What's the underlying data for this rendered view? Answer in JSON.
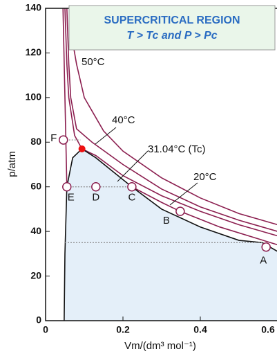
{
  "chart_data": {
    "type": "line",
    "title": "SUPERCRITICAL REGION",
    "subtitle": "T > Tc and P > Pc",
    "x_label": "Vm/(dm³ mol⁻¹)",
    "y_label": "p/atm",
    "xlim": [
      0,
      0.6
    ],
    "xticks": [
      0,
      0.2,
      0.4,
      0.6
    ],
    "ylim": [
      0,
      140
    ],
    "yticks": [
      0,
      20,
      40,
      60,
      80,
      100,
      120,
      140
    ],
    "series": [
      {
        "name": "50°C",
        "color": "#8b1e4f",
        "x": [
          0.062,
          0.07,
          0.08,
          0.1,
          0.15,
          0.2,
          0.3,
          0.4,
          0.5,
          0.6
        ],
        "values": [
          140,
          125,
          115,
          100,
          85,
          76,
          64,
          55,
          48,
          43
        ]
      },
      {
        "name": "40°C",
        "color": "#8b1e4f",
        "x": [
          0.055,
          0.06,
          0.065,
          0.08,
          0.12,
          0.2,
          0.3,
          0.4,
          0.5,
          0.6
        ],
        "values": [
          140,
          115,
          100,
          86,
          80,
          70,
          59,
          51,
          45,
          40
        ]
      },
      {
        "name": "31.04°C (Tc)",
        "color": "#8b1e4f",
        "x": [
          0.05,
          0.055,
          0.06,
          0.075,
          0.094,
          0.13,
          0.2,
          0.3,
          0.4,
          0.5,
          0.6
        ],
        "values": [
          140,
          115,
          100,
          83,
          77,
          74,
          65,
          56,
          49,
          43,
          38
        ]
      },
      {
        "name": "20°C",
        "color": "#8b1e4f",
        "x": [
          0.045,
          0.05,
          0.055,
          0.223,
          0.3,
          0.348,
          0.45,
          0.6
        ],
        "values": [
          140,
          100,
          60,
          60,
          53,
          49,
          42,
          34
        ]
      },
      {
        "color": "#111111",
        "fill": "#e4eff9",
        "x": [
          0.048,
          0.05,
          0.055,
          0.07,
          0.094,
          0.13,
          0.18,
          0.223,
          0.3,
          0.4,
          0.5,
          0.56,
          0.6
        ],
        "values": [
          0,
          30,
          60,
          73,
          77,
          73,
          66,
          60,
          50,
          42,
          36,
          35,
          31
        ]
      },
      {
        "color": "#8a8a8a",
        "dotted": true,
        "x": [
          0.046,
          0.09
        ],
        "values": [
          81,
          81
        ]
      },
      {
        "color": "#8a8a8a",
        "dotted": true,
        "x": [
          0.055,
          0.223
        ],
        "values": [
          60,
          60
        ]
      },
      {
        "color": "#8a8a8a",
        "dotted": true,
        "x": [
          0.05,
          0.56
        ],
        "values": [
          35,
          35
        ]
      }
    ],
    "points": {
      "labels": [
        "A",
        "B",
        "C",
        "D",
        "E",
        "F"
      ],
      "x": [
        0.57,
        0.348,
        0.223,
        0.13,
        0.055,
        0.046
      ],
      "values": [
        33,
        49,
        60,
        60,
        60,
        81
      ]
    },
    "critical_point": {
      "x": 0.094,
      "value": 77,
      "color": "#ee1111"
    }
  }
}
